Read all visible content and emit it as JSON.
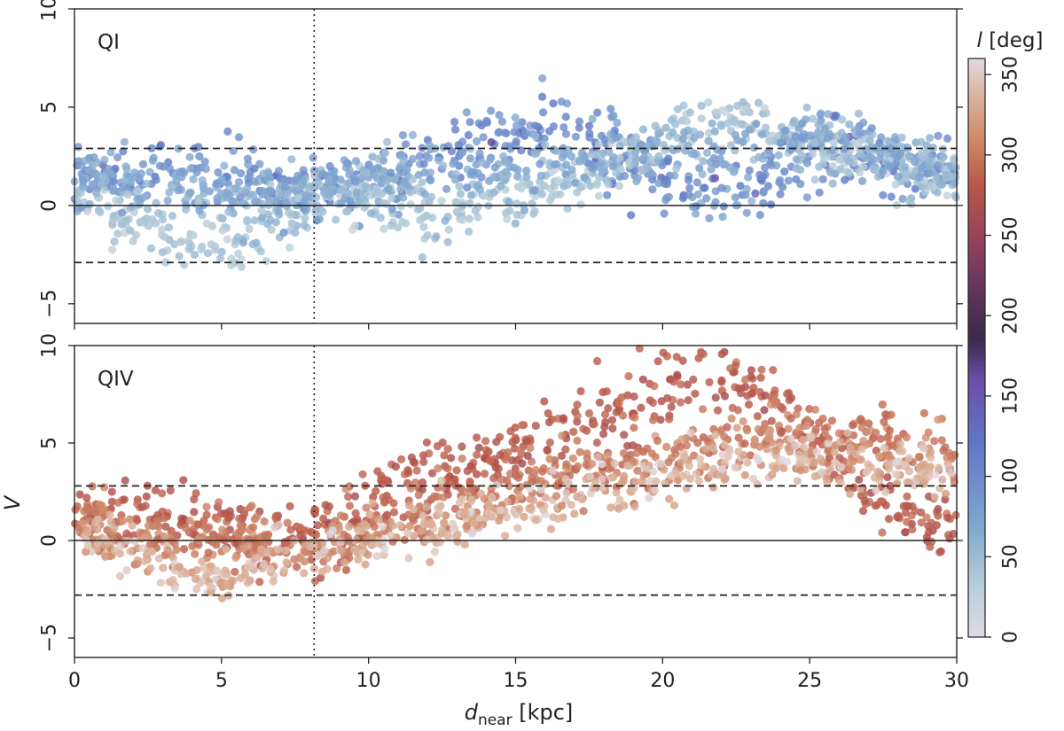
{
  "chart_data": {
    "type": "scatter",
    "x_label_main": "d",
    "x_label_sub": "near",
    "x_label_unit": " [kpc]",
    "y_label": "V",
    "xlim": [
      0,
      30
    ],
    "x_ticks": [
      0,
      5,
      10,
      15,
      20,
      25,
      30
    ],
    "x_tick_labels": [
      "0",
      "5",
      "10",
      "15",
      "20",
      "25",
      "30"
    ],
    "vertical_dotted_line_x": 8.15,
    "colorbar": {
      "title_var": "l",
      "title_unit": " [deg]",
      "range": [
        0,
        360
      ],
      "ticks": [
        0,
        50,
        100,
        150,
        200,
        250,
        300,
        350
      ],
      "tick_labels": [
        "0",
        "50",
        "100",
        "150",
        "200",
        "250",
        "300",
        "350"
      ],
      "colormap": "twilight",
      "stops": [
        {
          "v": 0,
          "color": "#e2d9e2"
        },
        {
          "v": 30,
          "color": "#b9cfd8"
        },
        {
          "v": 70,
          "color": "#7fa6cf"
        },
        {
          "v": 120,
          "color": "#6078c6"
        },
        {
          "v": 160,
          "color": "#6b4ea8"
        },
        {
          "v": 185,
          "color": "#3b2a4d"
        },
        {
          "v": 200,
          "color": "#4a2f55"
        },
        {
          "v": 240,
          "color": "#8a3f5f"
        },
        {
          "v": 280,
          "color": "#b85648"
        },
        {
          "v": 310,
          "color": "#cf8a6a"
        },
        {
          "v": 340,
          "color": "#dcb8a4"
        },
        {
          "v": 360,
          "color": "#e2d9e2"
        }
      ]
    },
    "panels": [
      {
        "label": "QI",
        "ylim": [
          -6,
          10
        ],
        "y_ticks": [
          -5,
          0,
          5,
          10
        ],
        "y_tick_labels": [
          "−5",
          "0",
          "5",
          "10"
        ],
        "hlines": [
          {
            "y": 0,
            "style": "solid"
          },
          {
            "y": 2.9,
            "style": "dashed"
          },
          {
            "y": -2.9,
            "style": "dashed"
          }
        ],
        "series": [
          {
            "name": "blue band",
            "l": 95,
            "spread": 18,
            "x": [
              0,
              1,
              2,
              3,
              4,
              5,
              6,
              7,
              8,
              9,
              10,
              11,
              12,
              13,
              14,
              15,
              16,
              17,
              18,
              19,
              20,
              21,
              22,
              23,
              24,
              25,
              26,
              27,
              28,
              29,
              30
            ],
            "y": [
              1.2,
              1.4,
              1.6,
              1.8,
              1.7,
              1.6,
              1.4,
              1.0,
              0.7,
              0.8,
              1.0,
              1.6,
              2.3,
              2.8,
              3.3,
              3.8,
              4.2,
              3.8,
              3.0,
              2.2,
              1.4,
              0.6,
              0.4,
              1.0,
              1.8,
              2.3,
              2.6,
              2.4,
              2.1,
              1.9,
              1.8
            ],
            "y_scatter": 1.5
          },
          {
            "name": "pale lower band",
            "l": 40,
            "spread": 10,
            "x": [
              0,
              1,
              2,
              3,
              4,
              5,
              6,
              7,
              8,
              9,
              10,
              11,
              12,
              13,
              14,
              15,
              16,
              17,
              18,
              19,
              20,
              21,
              22,
              23,
              24,
              25,
              26,
              27,
              28,
              29,
              30
            ],
            "y": [
              0.5,
              0.0,
              -0.8,
              -1.6,
              -2.2,
              -2.0,
              -1.4,
              -0.8,
              0.0,
              0.4,
              0.4,
              0.1,
              -0.5,
              -0.5,
              0.3,
              0.6,
              0.8,
              1.3,
              1.8,
              2.5,
              3.3,
              4.0,
              4.5,
              4.3,
              3.6,
              3.0,
              2.5,
              2.2,
              1.8,
              1.5,
              1.2
            ],
            "y_scatter": 1.3
          },
          {
            "name": "mid band",
            "l": 65,
            "spread": 12,
            "x": [
              0,
              2,
              4,
              6,
              8,
              10,
              12,
              14,
              16,
              18,
              20,
              22,
              24,
              26,
              28,
              30
            ],
            "y": [
              1.5,
              1.0,
              0.6,
              0.5,
              0.8,
              1.5,
              1.8,
              1.6,
              1.9,
              2.6,
              3.0,
              2.6,
              3.3,
              3.8,
              2.6,
              1.8
            ],
            "y_scatter": 1.1
          }
        ]
      },
      {
        "label": "QIV",
        "ylim": [
          -6,
          10
        ],
        "y_ticks": [
          -5,
          0,
          5,
          10
        ],
        "y_tick_labels": [
          "−5",
          "0",
          "5",
          "10"
        ],
        "hlines": [
          {
            "y": 0,
            "style": "solid"
          },
          {
            "y": 2.8,
            "style": "dashed"
          },
          {
            "y": -2.8,
            "style": "dashed"
          }
        ],
        "series": [
          {
            "name": "dark red band",
            "l": 282,
            "spread": 10,
            "x": [
              0,
              1,
              2,
              3,
              4,
              5,
              6,
              7,
              8,
              9,
              10,
              11,
              12,
              13,
              14,
              15,
              16,
              17,
              18,
              19,
              20,
              21,
              22,
              23,
              24,
              25,
              26,
              27,
              28,
              29,
              30
            ],
            "y": [
              1.5,
              1.3,
              1.2,
              1.0,
              0.8,
              0.6,
              0.3,
              0.0,
              0.2,
              1.2,
              2.2,
              2.8,
              3.0,
              3.4,
              4.0,
              4.6,
              5.2,
              5.8,
              6.4,
              7.0,
              7.8,
              8.5,
              8.6,
              8.2,
              7.0,
              5.5,
              4.0,
              2.4,
              1.4,
              0.8,
              0.6
            ],
            "y_scatter": 1.5
          },
          {
            "name": "orange band",
            "l": 300,
            "spread": 10,
            "x": [
              0,
              1,
              2,
              3,
              4,
              5,
              6,
              7,
              8,
              9,
              10,
              11,
              12,
              13,
              14,
              15,
              16,
              17,
              18,
              19,
              20,
              21,
              22,
              23,
              24,
              25,
              26,
              27,
              28,
              29,
              30
            ],
            "y": [
              0.8,
              0.6,
              0.4,
              0.2,
              0.1,
              0.2,
              0.3,
              0.0,
              -0.3,
              0.0,
              0.4,
              0.8,
              1.4,
              1.8,
              2.3,
              2.6,
              3.0,
              3.4,
              3.7,
              4.0,
              4.3,
              4.6,
              5.0,
              5.3,
              5.5,
              5.6,
              5.4,
              5.2,
              5.0,
              4.8,
              4.6
            ],
            "y_scatter": 1.4
          },
          {
            "name": "pale band",
            "l": 335,
            "spread": 12,
            "x": [
              0,
              1,
              2,
              3,
              4,
              5,
              6,
              7,
              8,
              9,
              10,
              11,
              12,
              13,
              14,
              15,
              16,
              17,
              18,
              19,
              20,
              21,
              22,
              23,
              24,
              25,
              26,
              27,
              28,
              29,
              30
            ],
            "y": [
              0.5,
              0.2,
              -0.4,
              -1.2,
              -1.9,
              -2.4,
              -1.2,
              -0.5,
              -0.3,
              -0.2,
              0.0,
              0.2,
              0.5,
              0.8,
              1.2,
              1.6,
              1.9,
              2.2,
              2.6,
              3.0,
              3.4,
              3.9,
              4.2,
              4.4,
              4.3,
              4.2,
              4.0,
              3.8,
              3.6,
              3.4,
              3.2
            ],
            "y_scatter": 1.2
          }
        ]
      }
    ]
  }
}
